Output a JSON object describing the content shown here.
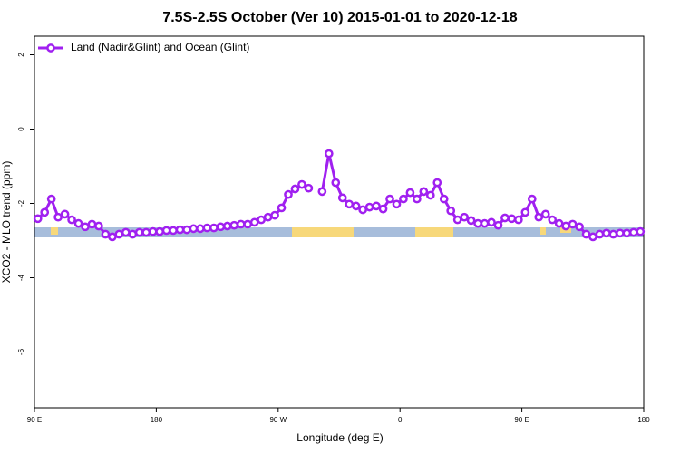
{
  "chart_data": {
    "type": "line",
    "title": "7.5S-2.5S October (Ver 10)   2015-01-01 to 2020-12-18",
    "xlabel": "Longitude (deg E)",
    "ylabel": "XCO2 - MLO trend (ppm)",
    "x": [
      92.5,
      97.5,
      102.5,
      107.5,
      112.5,
      117.5,
      122.5,
      127.5,
      132.5,
      137.5,
      142.5,
      147.5,
      152.5,
      157.5,
      162.5,
      167.5,
      172.5,
      177.5,
      182.5,
      187.5,
      192.5,
      197.5,
      202.5,
      207.5,
      212.5,
      217.5,
      222.5,
      227.5,
      232.5,
      237.5,
      242.5,
      247.5,
      252.5,
      257.5,
      262.5,
      267.5,
      272.5,
      277.5,
      282.5,
      287.5,
      292.5,
      297.5,
      302.5,
      307.5,
      312.5,
      317.5,
      322.5,
      327.5,
      332.5,
      337.5,
      342.5,
      347.5,
      352.5,
      357.5,
      362.5,
      367.5,
      372.5,
      377.5,
      382.5,
      387.5,
      392.5,
      397.5,
      402.5,
      407.5,
      412.5,
      417.5,
      422.5,
      427.5,
      432.5,
      437.5,
      442.5,
      447.5,
      452.5,
      457.5,
      462.5,
      467.5,
      472.5,
      477.5,
      482.5,
      487.5,
      492.5,
      497.5,
      502.5,
      507.5,
      512.5,
      517.5,
      522.5,
      527.5,
      532.5,
      537.5
    ],
    "series": [
      {
        "name": "Land (Nadir&Glint) and Ocean (Glint)",
        "color": "#a020f0",
        "values": [
          -2.41,
          -2.24,
          -1.88,
          -2.37,
          -2.29,
          -2.44,
          -2.54,
          -2.63,
          -2.56,
          -2.61,
          -2.83,
          -2.9,
          -2.83,
          -2.78,
          -2.83,
          -2.78,
          -2.78,
          -2.76,
          -2.76,
          -2.73,
          -2.73,
          -2.71,
          -2.71,
          -2.68,
          -2.68,
          -2.66,
          -2.66,
          -2.63,
          -2.61,
          -2.59,
          -2.56,
          -2.56,
          -2.51,
          -2.44,
          -2.37,
          -2.32,
          -2.12,
          -1.76,
          -1.61,
          -1.49,
          -1.59,
          null,
          -1.68,
          -0.66,
          -1.44,
          -1.85,
          -2.02,
          -2.07,
          -2.17,
          -2.1,
          -2.07,
          -2.15,
          -1.88,
          -2.02,
          -1.88,
          -1.71,
          -1.88,
          -1.68,
          -1.78,
          -1.44,
          -1.88,
          -2.2,
          -2.44,
          -2.37,
          -2.46,
          -2.54,
          -2.54,
          -2.51,
          -2.59,
          -2.39,
          -2.41,
          -2.44,
          -2.24,
          -1.88,
          -2.37,
          -2.29,
          -2.44,
          -2.54,
          -2.61,
          -2.56,
          -2.63,
          -2.83,
          -2.9,
          -2.83,
          -2.8,
          -2.83,
          -2.8,
          -2.8,
          -2.78,
          -2.76
        ]
      }
    ],
    "xlim": [
      90,
      540
    ],
    "xticks": [
      {
        "value": 90,
        "label": "90 E"
      },
      180,
      {
        "value": 270,
        "label": "90 W"
      },
      {
        "value": 360,
        "label": "0"
      },
      {
        "value": 450,
        "label": "90 E"
      },
      {
        "value": 540,
        "label": "180"
      }
    ],
    "ylim": [
      -7.5,
      2.5
    ],
    "yticks": [
      -6,
      -4,
      -2,
      0,
      2
    ],
    "legend": "top-left"
  }
}
